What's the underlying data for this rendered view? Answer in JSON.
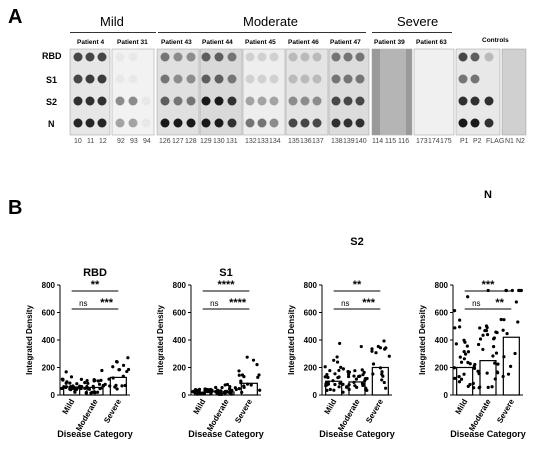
{
  "panel_a": {
    "letter": "A",
    "groups": [
      "Mild",
      "Moderate",
      "Severe"
    ],
    "patients": [
      "Patient 4",
      "Patient 31",
      "Patient 43",
      "Patient 44",
      "Patient 45",
      "Patient 46",
      "Patient 47",
      "Patient 39",
      "Patient 63",
      "Controls"
    ],
    "rows": [
      "RBD",
      "S1",
      "S2",
      "N"
    ],
    "lanes": [
      "10",
      "11",
      "12",
      "92",
      "93",
      "94",
      "126",
      "127",
      "128",
      "129",
      "130",
      "131",
      "132",
      "133",
      "134",
      "135",
      "136",
      "137",
      "138",
      "139",
      "140",
      "114",
      "115",
      "116",
      "173",
      "174",
      "175",
      "P1",
      "P2",
      "FLAG",
      "N1",
      "N2"
    ]
  },
  "panel_b": {
    "letter": "B"
  },
  "chart_data": [
    {
      "type": "bar",
      "title": "RBD",
      "xlabel": "Disease Category",
      "ylabel": "Integrated Density",
      "categories": [
        "Mild",
        "Moderate",
        "Severe"
      ],
      "values": [
        58,
        55,
        128
      ],
      "ylim": [
        0,
        800
      ],
      "yticks": [
        "0",
        "200",
        "400",
        "600",
        "800"
      ],
      "significance": [
        {
          "from": 0,
          "to": 2,
          "label": "**"
        },
        {
          "from": 0,
          "to": 1,
          "label": "ns"
        },
        {
          "from": 1,
          "to": 2,
          "label": "***"
        }
      ]
    },
    {
      "type": "bar",
      "title": "S1",
      "xlabel": "Disease Category",
      "ylabel": "Integrated Density",
      "categories": [
        "Mild",
        "Moderate",
        "Severe"
      ],
      "values": [
        20,
        22,
        85
      ],
      "ylim": [
        0,
        800
      ],
      "yticks": [
        "0",
        "200",
        "400",
        "600",
        "800"
      ],
      "significance": [
        {
          "from": 0,
          "to": 2,
          "label": "****"
        },
        {
          "from": 1,
          "to": 2,
          "label": "****"
        },
        {
          "from": 0,
          "to": 1,
          "label": "ns"
        }
      ]
    },
    {
      "type": "bar",
      "title": "S2",
      "xlabel": "Disease Category",
      "ylabel": "Integrated Density",
      "categories": [
        "Mild",
        "Moderate",
        "Severe"
      ],
      "values": [
        100,
        95,
        200
      ],
      "ylim": [
        0,
        800
      ],
      "yticks": [
        "0",
        "200",
        "400",
        "600",
        "800"
      ],
      "significance": [
        {
          "from": 0,
          "to": 2,
          "label": "**"
        },
        {
          "from": 0,
          "to": 1,
          "label": "ns"
        },
        {
          "from": 1,
          "to": 2,
          "label": "***"
        }
      ]
    },
    {
      "type": "bar",
      "title": "N",
      "xlabel": "Disease Category",
      "ylabel": "Integrated Density",
      "categories": [
        "Mild",
        "Moderate",
        "Severe"
      ],
      "values": [
        200,
        250,
        420
      ],
      "ylim": [
        0,
        800
      ],
      "yticks": [
        "0",
        "200",
        "400",
        "600",
        "800"
      ],
      "significance": [
        {
          "from": 0,
          "to": 2,
          "label": "***"
        },
        {
          "from": 0,
          "to": 1,
          "label": "ns"
        },
        {
          "from": 1,
          "to": 2,
          "label": "**"
        }
      ]
    }
  ]
}
